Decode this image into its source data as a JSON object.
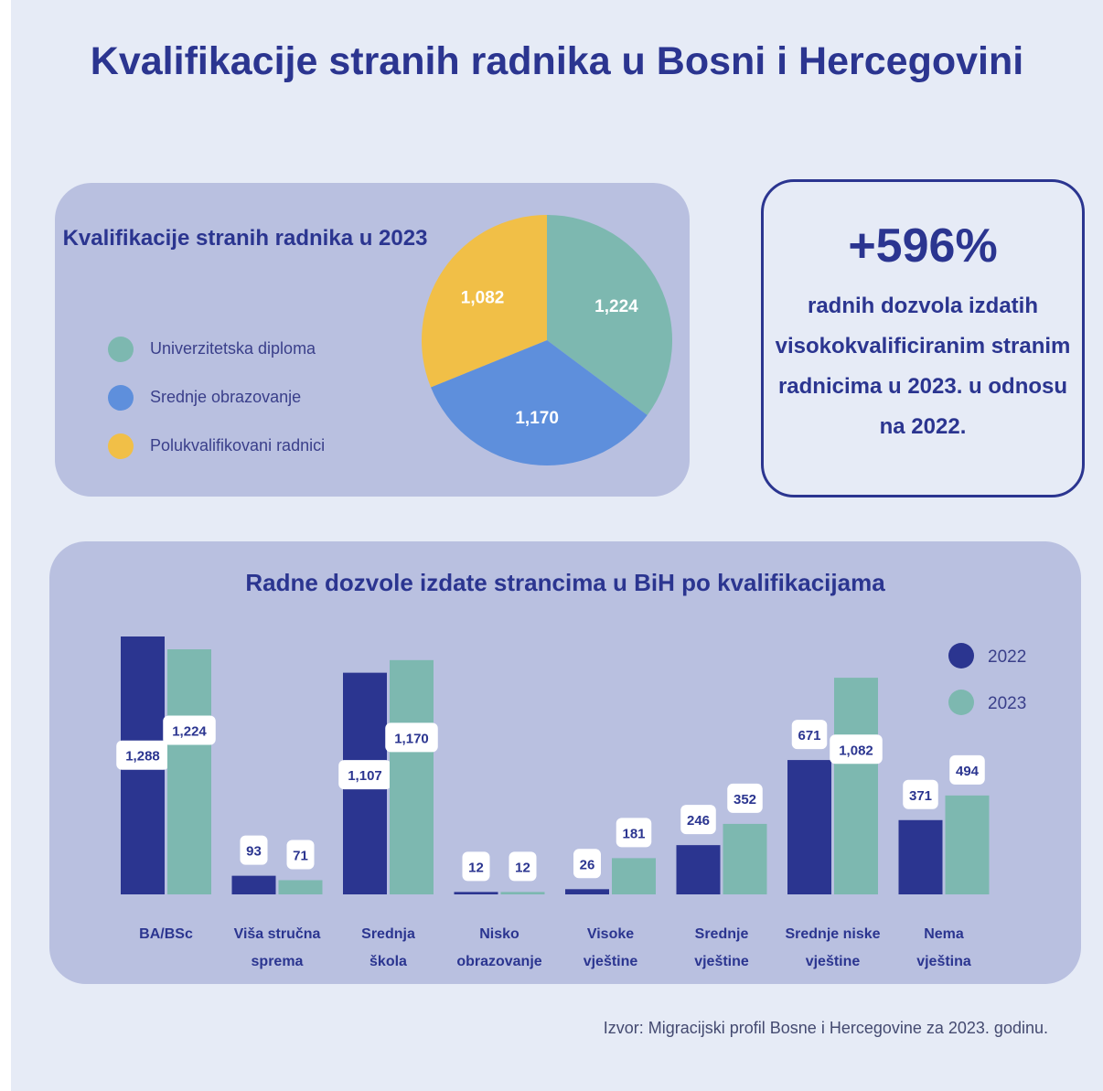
{
  "title": "Kvalifikacije stranih radnika u Bosni i Hercegovini",
  "colors": {
    "dark_blue": "#2b3590",
    "teal": "#7db8b0",
    "mid_blue": "#5e8fdc",
    "yellow": "#f1bf47"
  },
  "stat": {
    "value": "+596%",
    "description": "radnih dozvola izdatih visokokvalificiranim stranim radnicima u 2023. u odnosu na 2022."
  },
  "source": "Izvor: Migracijski profil Bosne i Hercegovine za 2023. godinu.",
  "chart_data": [
    {
      "type": "pie",
      "title": "Kvalifikacije stranih radnika u 2023",
      "slices": [
        {
          "label": "Univerzitetska diploma",
          "value": 1224,
          "display": "1,224",
          "color": "#7db8b0"
        },
        {
          "label": "Srednje obrazovanje",
          "value": 1170,
          "display": "1,170",
          "color": "#5e8fdc"
        },
        {
          "label": "Polukvalifikovani radnici",
          "value": 1082,
          "display": "1,082",
          "color": "#f1bf47"
        }
      ],
      "legend": "left"
    },
    {
      "type": "bar",
      "title": "Radne dozvole izdate strancima u BiH po kvalifikacijama",
      "categories": [
        [
          "BA/BSc"
        ],
        [
          "Viša stručna",
          "sprema"
        ],
        [
          "Srednja",
          "škola"
        ],
        [
          "Nisko",
          "obrazovanje"
        ],
        [
          "Visoke",
          "vještine"
        ],
        [
          "Srednje",
          "vještine"
        ],
        [
          "Srednje niske",
          "vještine"
        ],
        [
          "Nema",
          "vještina"
        ]
      ],
      "series": [
        {
          "name": "2022",
          "color": "#2b3590",
          "values": [
            1288,
            93,
            1107,
            12,
            26,
            246,
            671,
            371
          ],
          "labels": [
            "1,288",
            "93",
            "1,107",
            "12",
            "26",
            "246",
            "671",
            "371"
          ]
        },
        {
          "name": "2023",
          "color": "#7db8b0",
          "values": [
            1224,
            71,
            1170,
            12,
            181,
            352,
            1082,
            494
          ],
          "labels": [
            "1,224",
            "71",
            "1,170",
            "12",
            "181",
            "352",
            "1,082",
            "494"
          ]
        }
      ],
      "ylim": [
        0,
        1300
      ],
      "legend": "top-right",
      "grid": false
    }
  ]
}
